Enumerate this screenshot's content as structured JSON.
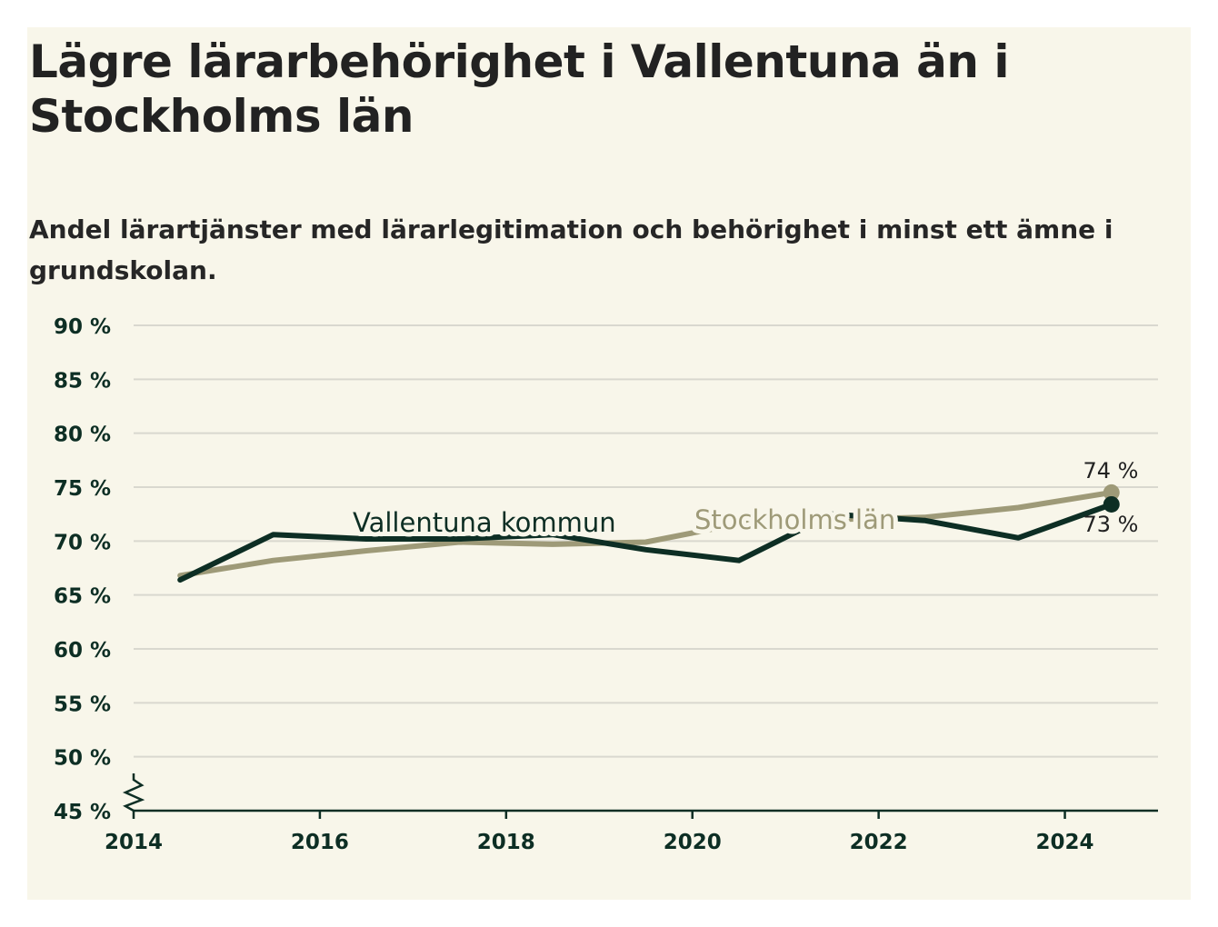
{
  "chart_data": {
    "type": "line",
    "title": "Lägre lärarbehörighet i Vallentuna än i Stockholms län",
    "subtitle": "Andel lärartjänster med lärarlegitimation och behörighet i minst ett ämne i grundskolan.",
    "xlabel": "",
    "ylabel": "",
    "x": [
      2014.5,
      2015.5,
      2016.5,
      2017.5,
      2018.5,
      2019.5,
      2020.5,
      2021.5,
      2022.5,
      2023.5,
      2024.5
    ],
    "series": [
      {
        "name": "Vallentuna kommun",
        "color": "#0d2e24",
        "values": [
          66.4,
          70.6,
          70.2,
          70.2,
          70.6,
          69.2,
          68.2,
          72.5,
          71.9,
          70.3,
          73.4
        ],
        "end_label": "73 %"
      },
      {
        "name": "Stockholms län",
        "color": "#9e9a78",
        "values": [
          66.8,
          68.2,
          69.1,
          69.9,
          69.7,
          69.9,
          71.6,
          72.0,
          72.2,
          73.1,
          74.5
        ],
        "end_label": "74 %"
      }
    ],
    "xlim": [
      2014,
      2025
    ],
    "ylim": [
      45,
      90
    ],
    "xticks": [
      "2014",
      "2016",
      "2018",
      "2020",
      "2022",
      "2024"
    ],
    "yticks": [
      "45 %",
      "50 %",
      "55 %",
      "60 %",
      "65 %",
      "70 %",
      "75 %",
      "80 %",
      "85 %",
      "90 %"
    ],
    "grid": true,
    "axis_break": true,
    "background_color": "#f8f6ea"
  }
}
